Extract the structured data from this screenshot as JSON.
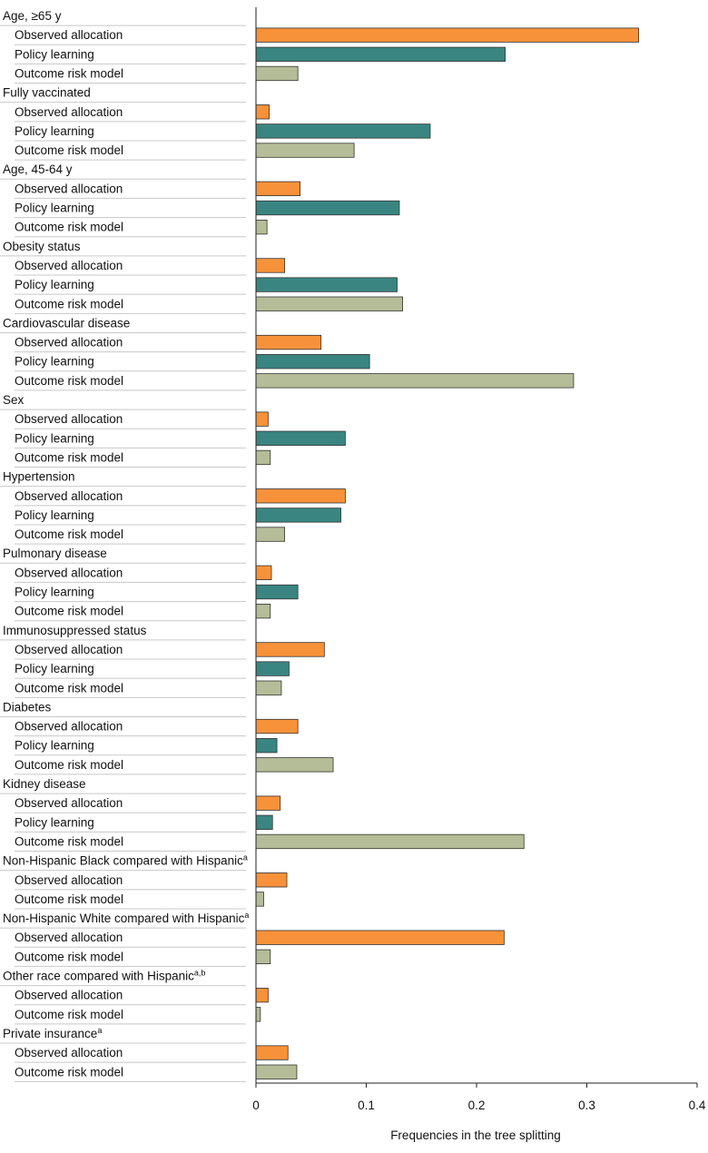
{
  "chart_data": {
    "type": "bar",
    "orientation": "horizontal",
    "xlabel": "Frequencies in the tree splitting",
    "xlim": [
      0,
      0.4
    ],
    "xticks": [
      "0",
      "0.1",
      "0.2",
      "0.3",
      "0.4"
    ],
    "series_colors": {
      "Observed allocation": "#F7923A",
      "Policy learning": "#3A8581",
      "Outcome risk model": "#B4BD97"
    },
    "groups": [
      {
        "label": "Age, ≥65 y",
        "sup": "",
        "bars": [
          {
            "series": "Observed allocation",
            "value": 0.347
          },
          {
            "series": "Policy learning",
            "value": 0.226
          },
          {
            "series": "Outcome risk model",
            "value": 0.038
          }
        ]
      },
      {
        "label": "Fully vaccinated",
        "sup": "",
        "bars": [
          {
            "series": "Observed allocation",
            "value": 0.012
          },
          {
            "series": "Policy learning",
            "value": 0.158
          },
          {
            "series": "Outcome risk model",
            "value": 0.089
          }
        ]
      },
      {
        "label": "Age, 45-64 y",
        "sup": "",
        "bars": [
          {
            "series": "Observed allocation",
            "value": 0.04
          },
          {
            "series": "Policy learning",
            "value": 0.13
          },
          {
            "series": "Outcome risk model",
            "value": 0.01
          }
        ]
      },
      {
        "label": "Obesity status",
        "sup": "",
        "bars": [
          {
            "series": "Observed allocation",
            "value": 0.026
          },
          {
            "series": "Policy learning",
            "value": 0.128
          },
          {
            "series": "Outcome risk model",
            "value": 0.133
          }
        ]
      },
      {
        "label": "Cardiovascular disease",
        "sup": "",
        "bars": [
          {
            "series": "Observed allocation",
            "value": 0.059
          },
          {
            "series": "Policy learning",
            "value": 0.103
          },
          {
            "series": "Outcome risk model",
            "value": 0.288
          }
        ]
      },
      {
        "label": "Sex",
        "sup": "",
        "bars": [
          {
            "series": "Observed allocation",
            "value": 0.011
          },
          {
            "series": "Policy learning",
            "value": 0.081
          },
          {
            "series": "Outcome risk model",
            "value": 0.013
          }
        ]
      },
      {
        "label": "Hypertension",
        "sup": "",
        "bars": [
          {
            "series": "Observed allocation",
            "value": 0.081
          },
          {
            "series": "Policy learning",
            "value": 0.077
          },
          {
            "series": "Outcome risk model",
            "value": 0.026
          }
        ]
      },
      {
        "label": "Pulmonary disease",
        "sup": "",
        "bars": [
          {
            "series": "Observed allocation",
            "value": 0.014
          },
          {
            "series": "Policy learning",
            "value": 0.038
          },
          {
            "series": "Outcome risk model",
            "value": 0.013
          }
        ]
      },
      {
        "label": "Immunosuppressed status",
        "sup": "",
        "bars": [
          {
            "series": "Observed allocation",
            "value": 0.062
          },
          {
            "series": "Policy learning",
            "value": 0.03
          },
          {
            "series": "Outcome risk model",
            "value": 0.023
          }
        ]
      },
      {
        "label": "Diabetes",
        "sup": "",
        "bars": [
          {
            "series": "Observed allocation",
            "value": 0.038
          },
          {
            "series": "Policy learning",
            "value": 0.019
          },
          {
            "series": "Outcome risk model",
            "value": 0.07
          }
        ]
      },
      {
        "label": "Kidney disease",
        "sup": "",
        "bars": [
          {
            "series": "Observed allocation",
            "value": 0.022
          },
          {
            "series": "Policy learning",
            "value": 0.015
          },
          {
            "series": "Outcome risk model",
            "value": 0.243
          }
        ]
      },
      {
        "label": "Non-Hispanic Black compared with Hispanic",
        "sup": "a",
        "bars": [
          {
            "series": "Observed allocation",
            "value": 0.028
          },
          {
            "series": "Outcome risk model",
            "value": 0.007
          }
        ]
      },
      {
        "label": "Non-Hispanic White compared with Hispanic",
        "sup": "a",
        "bars": [
          {
            "series": "Observed allocation",
            "value": 0.225
          },
          {
            "series": "Outcome risk model",
            "value": 0.013
          }
        ]
      },
      {
        "label": "Other race compared with Hispanic",
        "sup": "a,b",
        "bars": [
          {
            "series": "Observed allocation",
            "value": 0.011
          },
          {
            "series": "Outcome risk model",
            "value": 0.004
          }
        ]
      },
      {
        "label": "Private insurance",
        "sup": "a",
        "bars": [
          {
            "series": "Observed allocation",
            "value": 0.029
          },
          {
            "series": "Outcome risk model",
            "value": 0.037
          }
        ]
      }
    ]
  }
}
